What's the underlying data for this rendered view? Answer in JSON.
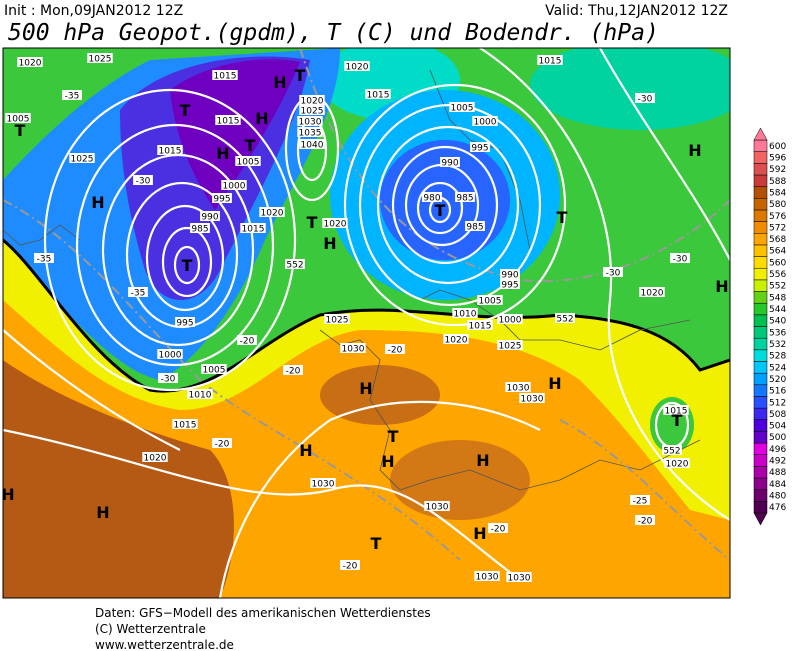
{
  "header": {
    "init": "Init : Mon,09JAN2012 12Z",
    "valid": "Valid: Thu,12JAN2012 12Z",
    "title": "500 hPa Geopot.(gpdm), T (C) und Bodendr. (hPa)"
  },
  "map": {
    "labels": [
      "1020",
      "1025",
      "1005",
      "T",
      "-35",
      "1025",
      "H",
      "T",
      "1015",
      "H",
      "T",
      "1015",
      "H",
      "T",
      "1015",
      "H",
      "1020",
      "1025",
      "1030",
      "1035",
      "1040",
      "1005",
      "1000",
      "995",
      "990",
      "985",
      "T",
      "1020",
      "1015",
      "1020",
      "T",
      "H",
      "1020",
      "1015",
      "1005",
      "1000",
      "995",
      "990",
      "T",
      "980",
      "985",
      "985",
      "T",
      "H",
      "1015",
      "-30",
      "-30",
      "-30",
      "1020",
      "H",
      "990",
      "995",
      "1000",
      "1005",
      "1010",
      "1015",
      "1020",
      "1025",
      "552",
      "552",
      "995",
      "1000",
      "1005",
      "1010",
      "1015",
      "1020",
      "-30",
      "-20",
      "-20",
      "-20",
      "1025",
      "1030",
      "-20",
      "H",
      "T",
      "H",
      "H",
      "H",
      "1030",
      "1030",
      "-20",
      "H",
      "T",
      "H",
      "H",
      "-20",
      "1030",
      "1030",
      "1030",
      "1030",
      "H",
      "1015",
      "T",
      "552",
      "1020",
      "-25",
      "-20",
      "-35",
      "-35",
      "-30"
    ]
  },
  "colorbar": {
    "values": [
      476,
      480,
      484,
      488,
      492,
      496,
      500,
      504,
      508,
      512,
      516,
      520,
      524,
      528,
      532,
      536,
      540,
      544,
      548,
      552,
      556,
      560,
      564,
      568,
      572,
      576,
      580,
      584,
      588,
      592,
      596,
      600
    ],
    "colors": [
      "#500050",
      "#6e006e",
      "#8c008c",
      "#aa00aa",
      "#c800c8",
      "#e000e0",
      "#6400c8",
      "#5000dc",
      "#3c28f0",
      "#2850ff",
      "#1478ff",
      "#00a0ff",
      "#00c8ff",
      "#00dcdc",
      "#00d2a0",
      "#00c878",
      "#00be50",
      "#28c828",
      "#64d214",
      "#c8f000",
      "#f0f000",
      "#ffdc00",
      "#ffc000",
      "#ffa500",
      "#f08c00",
      "#dc7800",
      "#c86400",
      "#b45000",
      "#c83c3c",
      "#dc5050",
      "#f06464",
      "#ff7896"
    ]
  },
  "footer": {
    "lines": [
      "Daten: GFS−Modell des amerikanischen Wetterdienstes",
      "(C) Wetterzentrale",
      "www.wetterzentrale.de"
    ]
  }
}
